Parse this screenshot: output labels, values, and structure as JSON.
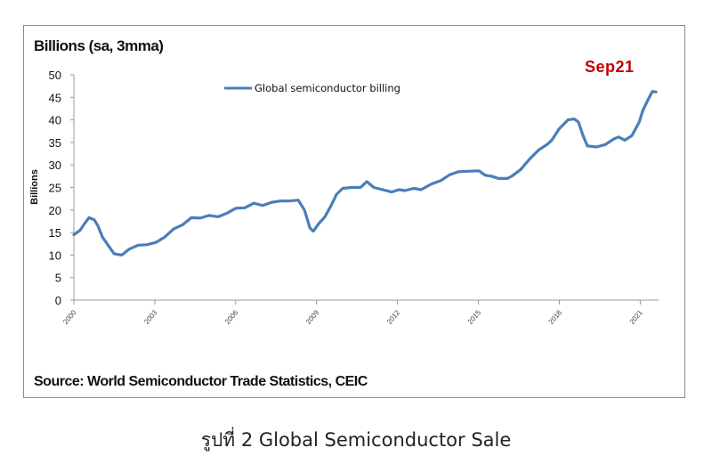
{
  "chart_data": {
    "type": "line",
    "title": "Billions (sa, 3mma)",
    "ylabel": "Billions",
    "xlabel": "",
    "ylim": [
      0,
      50
    ],
    "yticks": [
      0,
      5,
      10,
      15,
      20,
      25,
      30,
      35,
      40,
      45,
      50
    ],
    "xlim": [
      2000,
      2021.68
    ],
    "xticks": [
      2000,
      2003,
      2006,
      2009,
      2012,
      2015,
      2018,
      2021
    ],
    "xtick_labels": [
      "2000",
      "2003",
      "2006",
      "2009",
      "2012",
      "2015",
      "2018",
      "2021"
    ],
    "grid": false,
    "legend_position": "top-center",
    "series": [
      {
        "name": "Global semiconductor billing",
        "color": "#4a7ebb",
        "x": [
          2000.0,
          2000.23,
          2000.4,
          2000.56,
          2000.76,
          2000.89,
          2001.06,
          2001.29,
          2001.49,
          2001.78,
          2002.05,
          2002.38,
          2002.71,
          2003.04,
          2003.37,
          2003.7,
          2004.03,
          2004.36,
          2004.69,
          2005.02,
          2005.35,
          2005.68,
          2006.01,
          2006.34,
          2006.67,
          2007.0,
          2007.33,
          2007.66,
          2007.99,
          2008.32,
          2008.55,
          2008.75,
          2008.88,
          2009.08,
          2009.31,
          2009.54,
          2009.74,
          2009.97,
          2010.3,
          2010.63,
          2010.86,
          2011.12,
          2011.45,
          2011.78,
          2012.05,
          2012.28,
          2012.61,
          2012.87,
          2013.27,
          2013.6,
          2013.93,
          2014.26,
          2014.59,
          2015.02,
          2015.25,
          2015.48,
          2015.74,
          2016.07,
          2016.24,
          2016.57,
          2016.9,
          2017.23,
          2017.56,
          2017.72,
          2017.99,
          2018.32,
          2018.55,
          2018.71,
          2018.88,
          2019.04,
          2019.37,
          2019.7,
          2020.03,
          2020.2,
          2020.43,
          2020.69,
          2020.96,
          2021.09,
          2021.29,
          2021.45,
          2021.58
        ],
        "y": [
          14.5,
          15.5,
          17,
          18.3,
          17.8,
          16.5,
          14,
          12,
          10.3,
          10,
          11.3,
          12.2,
          12.3,
          12.8,
          14,
          15.8,
          16.7,
          18.3,
          18.2,
          18.8,
          18.5,
          19.3,
          20.4,
          20.5,
          21.5,
          21,
          21.7,
          22,
          22,
          22.2,
          20,
          16,
          15.3,
          17,
          18.5,
          21,
          23.5,
          24.8,
          25,
          25,
          26.3,
          25,
          24.5,
          24,
          24.5,
          24.3,
          24.8,
          24.5,
          25.8,
          26.5,
          27.8,
          28.5,
          28.6,
          28.7,
          27.7,
          27.5,
          27,
          27,
          27.5,
          29,
          31.3,
          33.3,
          34.6,
          35.5,
          38,
          40,
          40.2,
          39.5,
          36.5,
          34.2,
          34,
          34.5,
          35.8,
          36.2,
          35.5,
          36.5,
          39.5,
          42,
          44.5,
          46.3,
          46.2
        ]
      }
    ],
    "annotations": [
      "Sep21"
    ]
  },
  "source": "Source: World Semiconductor Trade Statistics, CEIC",
  "caption": "รูปที่ 2 Global Semiconductor Sale"
}
